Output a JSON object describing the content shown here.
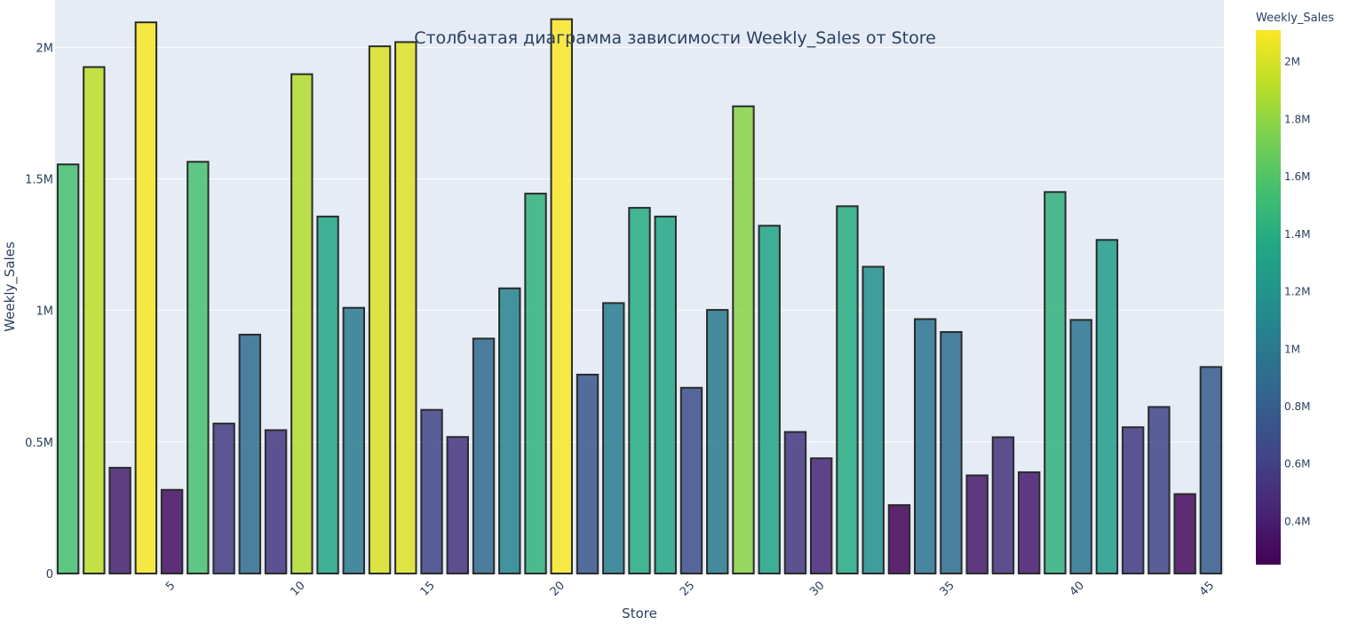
{
  "chart_data": {
    "type": "bar",
    "title": "Столбчатая диаграмма зависимости Weekly_Sales от Store",
    "xlabel": "Store",
    "ylabel": "Weekly_Sales",
    "x": [
      1,
      2,
      3,
      4,
      5,
      6,
      7,
      8,
      9,
      10,
      11,
      12,
      13,
      14,
      15,
      16,
      17,
      18,
      19,
      20,
      21,
      22,
      23,
      24,
      25,
      26,
      27,
      28,
      29,
      30,
      31,
      32,
      33,
      34,
      35,
      36,
      37,
      38,
      39,
      40,
      41,
      42,
      43,
      44,
      45
    ],
    "values": [
      1555000,
      1925000,
      402000,
      2095000,
      318000,
      1565000,
      570000,
      908000,
      545000,
      1898000,
      1357000,
      1010000,
      2004000,
      2020000,
      622000,
      519000,
      893000,
      1084000,
      1444000,
      2107000,
      756000,
      1028000,
      1390000,
      1357000,
      706000,
      1002000,
      1776000,
      1322000,
      538000,
      438000,
      1396000,
      1166000,
      260000,
      967000,
      918000,
      373000,
      518000,
      385000,
      1450000,
      964000,
      1268000,
      556000,
      633000,
      302000,
      785000
    ],
    "x_ticks": [
      5,
      10,
      15,
      20,
      25,
      30,
      35,
      40,
      45
    ],
    "xlim": [
      0.5,
      45.5
    ],
    "y_ticks": [
      0,
      500000,
      1000000,
      1500000,
      2000000
    ],
    "y_tick_labels": [
      "0",
      "0.5M",
      "1M",
      "1.5M",
      "2M"
    ],
    "ylim": [
      0,
      2180000
    ],
    "grid": true,
    "colorbar": {
      "title": "Weekly_Sales",
      "colorscale": "Viridis",
      "cmin": 250000,
      "cmax": 2110000,
      "ticks": [
        400000,
        600000,
        800000,
        1000000,
        1200000,
        1400000,
        1600000,
        1800000,
        2000000
      ],
      "tick_labels": [
        "0.4M",
        "0.6M",
        "0.8M",
        "1M",
        "1.2M",
        "1.4M",
        "1.6M",
        "1.8M",
        "2M"
      ]
    },
    "colors": {
      "plot_bg": "#e5ecf6",
      "grid": "#ffffff",
      "text": "#2a3f5f",
      "bar_outline": "#2b2b2b"
    }
  }
}
